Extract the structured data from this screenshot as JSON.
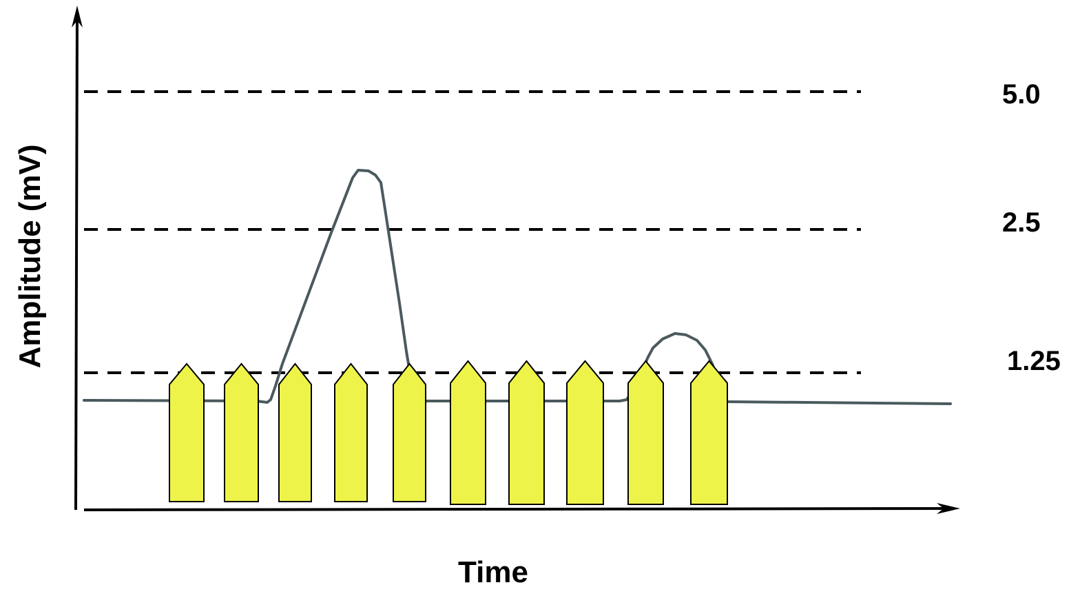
{
  "axes": {
    "y_label": "Amplitude (mV)",
    "x_label": "Time"
  },
  "thresholds": [
    {
      "label": "5.0",
      "value": 5.0
    },
    {
      "label": "2.5",
      "value": 2.5
    },
    {
      "label": "1.25",
      "value": 1.25
    }
  ],
  "colors": {
    "waveform": "#4a5a5e",
    "block_fill": "#eef34a",
    "block_stroke": "#000000",
    "dashed_line": "#000000",
    "axis": "#000000"
  },
  "waveform_shape": "small dip, tall peak above the 2.5 line, return to baseline, then a small hump just above the 1.25 line",
  "block_count": 10,
  "block_shape": "yellow pentagon arrow pointing up"
}
